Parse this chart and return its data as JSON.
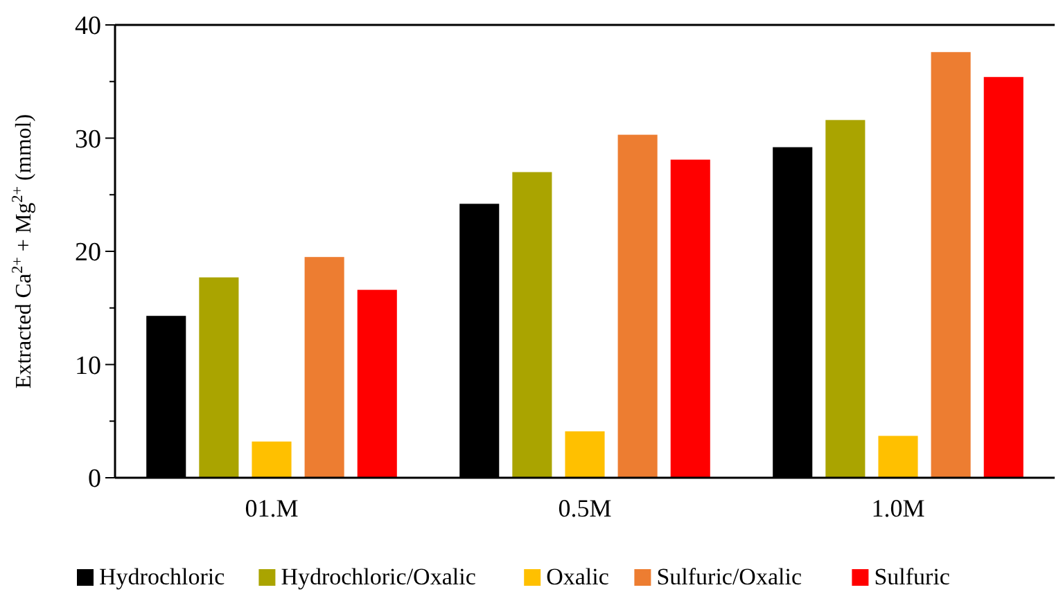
{
  "chart_data": {
    "type": "bar",
    "ylabel": "Extracted Ca$^{2+}$ + Mg$^{2+}$  (mmol)",
    "categories": [
      "01.M",
      "0.5M",
      "1.0M"
    ],
    "series": [
      {
        "name": "Hydrochloric",
        "color": "#000000",
        "values": [
          14.3,
          24.2,
          29.2
        ]
      },
      {
        "name": "Hydrochloric/Oxalic",
        "color": "#aaa400",
        "values": [
          17.7,
          27.0,
          31.6
        ]
      },
      {
        "name": "Oxalic",
        "color": "#ffc000",
        "values": [
          3.2,
          4.1,
          3.7
        ]
      },
      {
        "name": "Sulfuric/Oxalic",
        "color": "#ed7d31",
        "values": [
          19.5,
          30.3,
          37.6
        ]
      },
      {
        "name": "Sulfuric",
        "color": "#ff0000",
        "values": [
          16.6,
          28.1,
          35.4
        ]
      }
    ],
    "ylim": [
      0,
      40
    ],
    "yticks": [
      0,
      {
        "value": 5,
        "label": null
      },
      10,
      {
        "value": 15,
        "label": null
      },
      20,
      {
        "value": 25,
        "label": null
      },
      30,
      {
        "value": 35,
        "label": null
      },
      40
    ],
    "grid": false,
    "legend": "bottom"
  }
}
